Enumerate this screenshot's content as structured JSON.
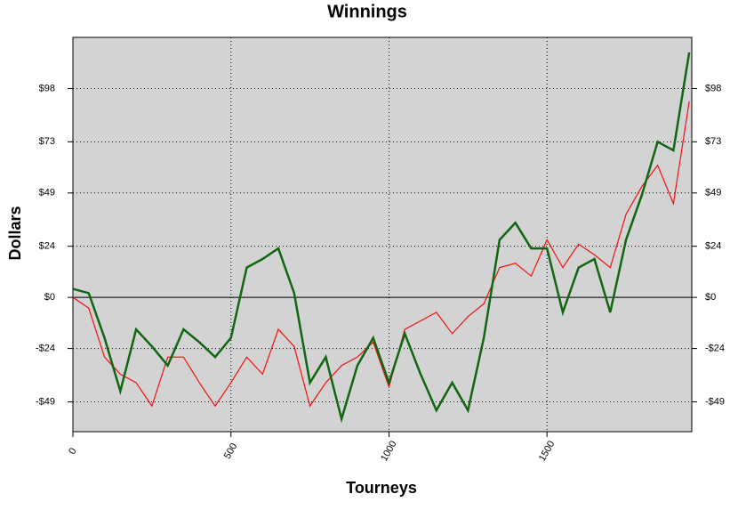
{
  "chart_data": {
    "type": "line",
    "title": "Winnings",
    "x_label": "Tourneys",
    "y_label": "Dollars",
    "x": [
      0,
      50,
      100,
      150,
      200,
      250,
      300,
      350,
      400,
      450,
      500,
      550,
      600,
      650,
      700,
      750,
      800,
      850,
      900,
      950,
      1000,
      1050,
      1100,
      1150,
      1200,
      1250,
      1300,
      1350,
      1400,
      1450,
      1500,
      1550,
      1600,
      1650,
      1700,
      1750,
      1800,
      1850,
      1900,
      1950
    ],
    "series": [
      {
        "color": "#ee1111",
        "values": [
          0,
          -5,
          -28,
          -36,
          -40,
          -51,
          -28,
          -28,
          -40,
          -51,
          -40,
          -28,
          -36,
          -15,
          -23,
          -51,
          -40,
          -32,
          -28,
          -21,
          -42,
          -15,
          -11,
          -7,
          -17,
          -9,
          -3,
          14,
          16,
          10,
          27,
          14,
          25,
          20,
          14,
          39,
          52,
          62,
          44,
          92
        ]
      },
      {
        "color": "#116611",
        "values": [
          4,
          2,
          -19,
          -44,
          -15,
          -23,
          -32,
          -15,
          -21,
          -28,
          -19,
          14,
          18,
          23,
          2,
          -40,
          -28,
          -57,
          -32,
          -19,
          -40,
          -17,
          -36,
          -53,
          -40,
          -53,
          -19,
          27,
          35,
          23,
          23,
          -7,
          14,
          18,
          -7,
          27,
          48,
          73,
          69,
          115
        ]
      }
    ],
    "xlim": [
      0,
      1958
    ],
    "ylim": [
      -63,
      122
    ],
    "xticks": [
      0,
      500,
      1000,
      1500
    ],
    "yticks": [
      {
        "value": 98,
        "label": "$98"
      },
      {
        "value": 73,
        "label": "$73"
      },
      {
        "value": 49,
        "label": "$49"
      },
      {
        "value": 24,
        "label": "$24"
      },
      {
        "value": 0,
        "label": "$0"
      },
      {
        "value": -24,
        "label": "-$24"
      },
      {
        "value": -49,
        "label": "-$49"
      }
    ],
    "grid": true,
    "background": "#d3d3d3"
  }
}
